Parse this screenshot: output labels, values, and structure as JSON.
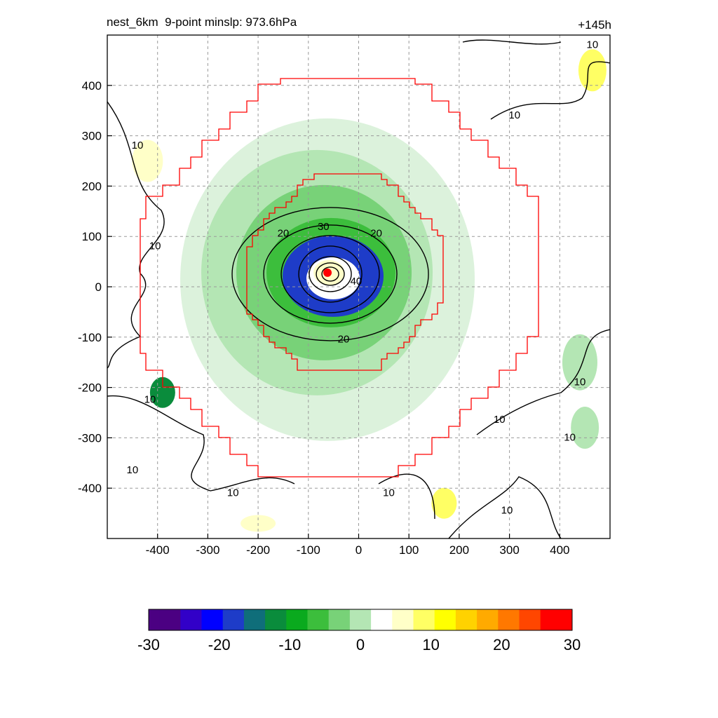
{
  "header": {
    "title": "nest_6km  9-point minslp: 973.6hPa",
    "forecast_hour": "+145h"
  },
  "colors": {
    "inner_domain_boundary": "#ff0000",
    "center_marker": "#ff0000",
    "contour": "#000000",
    "grid": "#9a9a9a",
    "colorbar": [
      "#4b0082",
      "#3200c8",
      "#0000ff",
      "#1e3cc8",
      "#0f6e7a",
      "#0a8c3c",
      "#0aaa1e",
      "#3cbe3c",
      "#78d278",
      "#b4e6b4",
      "#ffffff",
      "#ffffc8",
      "#ffff64",
      "#ffff00",
      "#ffd200",
      "#ffaa00",
      "#ff7800",
      "#ff4600",
      "#ff0000"
    ]
  },
  "chart_data": {
    "type": "contour",
    "xlim": [
      -500,
      500
    ],
    "ylim": [
      -500,
      500
    ],
    "xticks": [
      "-400",
      "-300",
      "-200",
      "-100",
      "0",
      "100",
      "200",
      "300",
      "400"
    ],
    "yticks": [
      "400",
      "300",
      "200",
      "100",
      "0",
      "-100",
      "-200",
      "-300",
      "-400"
    ],
    "grid": true,
    "colorbar": {
      "range": [
        -30,
        30
      ],
      "tick_labels": [
        "-30",
        "-20",
        "-10",
        "0",
        "10",
        "20",
        "30"
      ]
    },
    "center": {
      "x": -62,
      "y": 28
    },
    "contour_labels": [
      {
        "text": "10",
        "x": -440,
        "y": 280
      },
      {
        "text": "10",
        "x": -405,
        "y": 80
      },
      {
        "text": "10",
        "x": -415,
        "y": -225
      },
      {
        "text": "10",
        "x": -450,
        "y": -365
      },
      {
        "text": "10",
        "x": -250,
        "y": -410
      },
      {
        "text": "10",
        "x": 60,
        "y": -410
      },
      {
        "text": "10",
        "x": 295,
        "y": -445
      },
      {
        "text": "10",
        "x": 280,
        "y": -265
      },
      {
        "text": "10",
        "x": 440,
        "y": -190
      },
      {
        "text": "10",
        "x": 420,
        "y": -300
      },
      {
        "text": "10",
        "x": 310,
        "y": 340
      },
      {
        "text": "10",
        "x": 465,
        "y": 480
      },
      {
        "text": "20",
        "x": -150,
        "y": 105
      },
      {
        "text": "30",
        "x": -70,
        "y": 118
      },
      {
        "text": "20",
        "x": 35,
        "y": 105
      },
      {
        "text": "20",
        "x": -30,
        "y": -105
      },
      {
        "text": "40",
        "x": -5,
        "y": 10
      }
    ]
  }
}
